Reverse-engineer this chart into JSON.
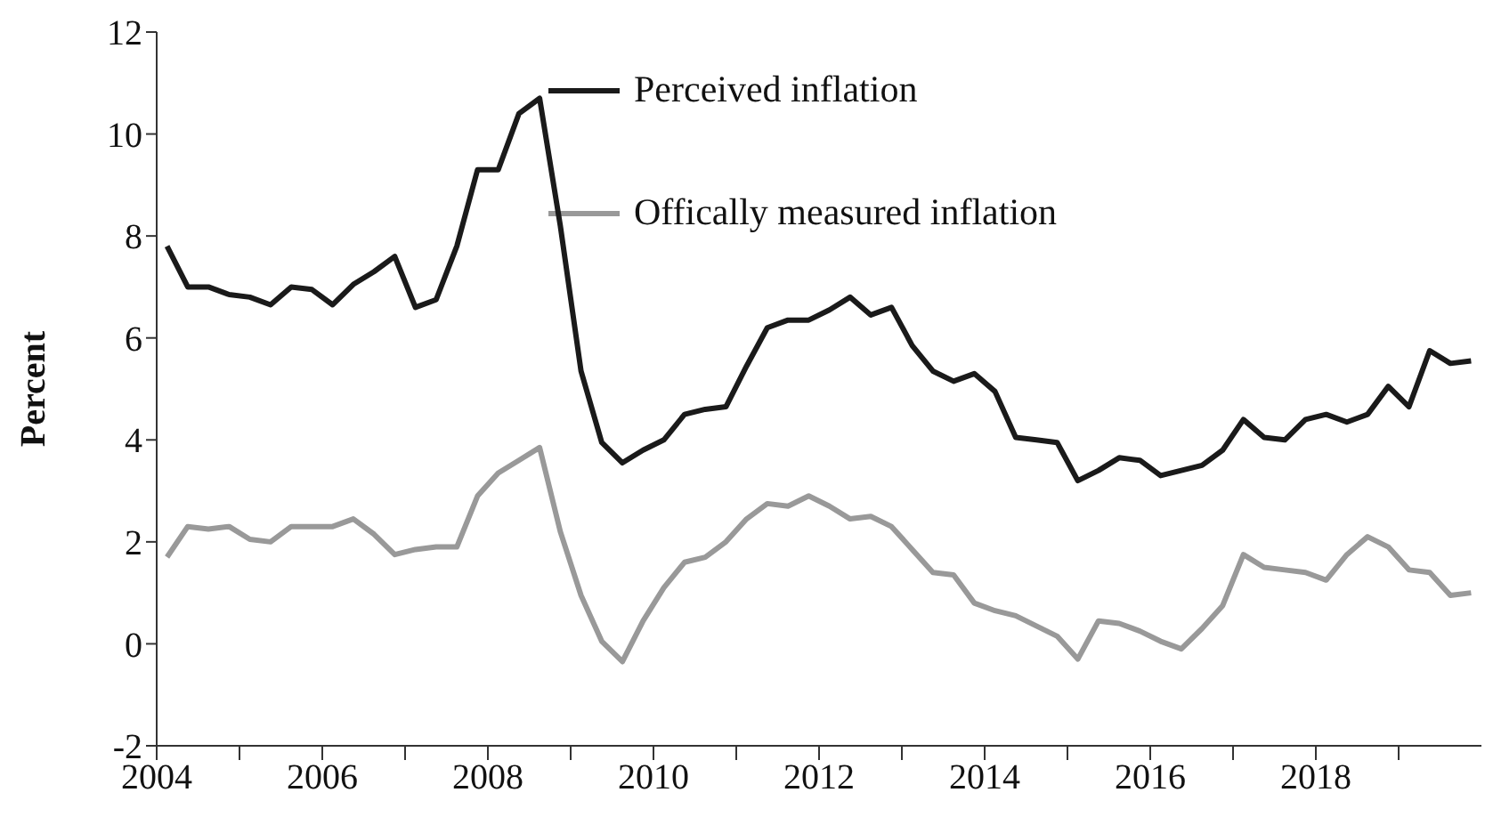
{
  "chart_data": {
    "type": "line",
    "ylabel": "Percent",
    "x": [
      2004.125,
      2004.375,
      2004.625,
      2004.875,
      2005.125,
      2005.375,
      2005.625,
      2005.875,
      2006.125,
      2006.375,
      2006.625,
      2006.875,
      2007.125,
      2007.375,
      2007.625,
      2007.875,
      2008.125,
      2008.375,
      2008.625,
      2008.875,
      2009.125,
      2009.375,
      2009.625,
      2009.875,
      2010.125,
      2010.375,
      2010.625,
      2010.875,
      2011.125,
      2011.375,
      2011.625,
      2011.875,
      2012.125,
      2012.375,
      2012.625,
      2012.875,
      2013.125,
      2013.375,
      2013.625,
      2013.875,
      2014.125,
      2014.375,
      2014.625,
      2014.875,
      2015.125,
      2015.375,
      2015.625,
      2015.875,
      2016.125,
      2016.375,
      2016.625,
      2016.875,
      2017.125,
      2017.375,
      2017.625,
      2017.875,
      2018.125,
      2018.375,
      2018.625,
      2018.875,
      2019.125,
      2019.375,
      2019.625,
      2019.875
    ],
    "series": [
      {
        "name": "Perceived inflation",
        "color": "#1a1a1a",
        "values": [
          7.8,
          7.0,
          7.0,
          6.85,
          6.8,
          6.65,
          7.0,
          6.95,
          6.65,
          7.05,
          7.3,
          7.6,
          6.6,
          6.75,
          7.8,
          9.3,
          9.3,
          10.4,
          10.7,
          8.2,
          5.35,
          3.95,
          3.55,
          3.8,
          4.0,
          4.5,
          4.6,
          4.65,
          5.45,
          6.2,
          6.35,
          6.35,
          6.55,
          6.8,
          6.45,
          6.6,
          5.85,
          5.35,
          5.15,
          5.3,
          4.95,
          4.05,
          4.0,
          3.95,
          3.2,
          3.4,
          3.65,
          3.6,
          3.3,
          3.4,
          3.5,
          3.8,
          4.4,
          4.05,
          4.0,
          4.4,
          4.5,
          4.35,
          4.5,
          5.05,
          4.65,
          5.75,
          5.5,
          5.55
        ]
      },
      {
        "name": "Offically measured inflation",
        "color": "#999999",
        "values": [
          1.7,
          2.3,
          2.25,
          2.3,
          2.05,
          2.0,
          2.3,
          2.3,
          2.3,
          2.45,
          2.15,
          1.75,
          1.85,
          1.9,
          1.9,
          2.9,
          3.35,
          3.6,
          3.85,
          2.2,
          0.95,
          0.05,
          -0.35,
          0.45,
          1.1,
          1.6,
          1.7,
          2.0,
          2.45,
          2.75,
          2.7,
          2.9,
          2.7,
          2.45,
          2.5,
          2.3,
          1.85,
          1.4,
          1.35,
          0.8,
          0.65,
          0.55,
          0.35,
          0.15,
          -0.3,
          0.45,
          0.4,
          0.25,
          0.05,
          -0.1,
          0.3,
          0.75,
          1.75,
          1.5,
          1.45,
          1.4,
          1.25,
          1.75,
          2.1,
          1.9,
          1.45,
          1.4,
          0.95,
          1.0
        ]
      }
    ],
    "xlim": [
      2004,
      2020
    ],
    "xticks": [
      2004,
      {
        "value": 2005,
        "label": null
      },
      2006,
      {
        "value": 2007,
        "label": null
      },
      2008,
      {
        "value": 2009,
        "label": null
      },
      2010,
      {
        "value": 2011,
        "label": null
      },
      2012,
      {
        "value": 2013,
        "label": null
      },
      2014,
      {
        "value": 2015,
        "label": null
      },
      2016,
      {
        "value": 2017,
        "label": null
      },
      2018,
      {
        "value": 2019,
        "label": null
      }
    ],
    "ylim": [
      -2,
      12
    ],
    "yticks": [
      -2,
      0,
      2,
      4,
      6,
      8,
      10,
      12
    ],
    "grid": false,
    "legend": "top",
    "marker": "none",
    "line_style": "solid"
  }
}
